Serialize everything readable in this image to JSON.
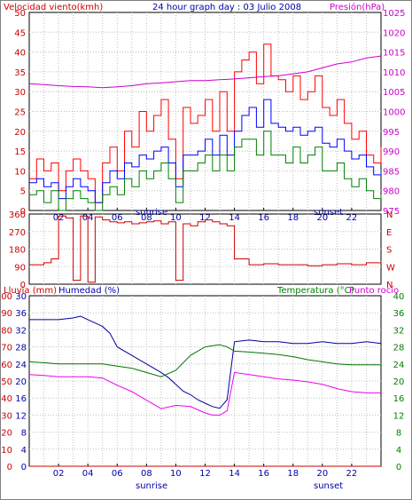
{
  "header": {
    "left_label": "Velocidad viento(kmh)",
    "title": "24 hour graph day : 03 Julio 2008",
    "right_label": "Presión(hPa)"
  },
  "colors": {
    "frame": "#000000",
    "grid": "#c0c0c0",
    "wind_gust": "#ff0000",
    "wind_avg": "#0000ff",
    "wind_low": "#008000",
    "pressure": "#cc00cc",
    "direction": "#cc0000",
    "humidity": "#000099",
    "temperature": "#007700",
    "dewpoint": "#ee00ee",
    "rain": "#cc0000",
    "left_text": "#cc0000",
    "right_text": "#cc00cc",
    "blue_text": "#0000aa",
    "green_text": "#008000"
  },
  "panel3_labels": {
    "rain": "Lluvia (mm)",
    "humidity": "Humedad (%)",
    "temperature": "Temperatura (°C)",
    "dewpoint": "Punto rocío"
  },
  "chart_data": [
    {
      "type": "line",
      "x_ticks": [
        "02",
        "04",
        "06",
        "08",
        "10",
        "12",
        "14",
        "16",
        "18",
        "20",
        "22"
      ],
      "markers": [
        "sunrise",
        "sunset"
      ],
      "y_ticks": [
        "0",
        "5",
        "10",
        "15",
        "20",
        "25",
        "30",
        "35",
        "40",
        "45",
        "50"
      ],
      "y2_ticks": [
        "975",
        "980",
        "985",
        "990",
        "995",
        "1000",
        "1005",
        "1010",
        "1015",
        "1020",
        "1025"
      ],
      "ylim": [
        0,
        50
      ],
      "y2lim": [
        975,
        1025
      ],
      "xlim": [
        0,
        24
      ],
      "series": [
        {
          "name": "Velocidad viento(kmh)",
          "x": [
            0,
            0.5,
            1,
            1.5,
            2,
            2.5,
            3,
            3.5,
            4,
            4.5,
            5,
            5.5,
            6,
            6.5,
            7,
            7.5,
            8,
            8.5,
            9,
            9.5,
            10,
            10.5,
            11,
            11.5,
            12,
            12.5,
            13,
            13.5,
            14,
            14.5,
            15,
            15.5,
            16,
            16.5,
            17,
            17.5,
            18,
            18.5,
            19,
            19.5,
            20,
            20.5,
            21,
            21.5,
            22,
            22.5,
            23,
            23.5,
            24
          ],
          "values": [
            8,
            13,
            10,
            12,
            5,
            10,
            13,
            10,
            8,
            2,
            12,
            16,
            10,
            20,
            16,
            25,
            20,
            24,
            28,
            18,
            8,
            26,
            22,
            24,
            28,
            20,
            30,
            20,
            35,
            38,
            40,
            32,
            42,
            34,
            33,
            30,
            34,
            28,
            30,
            34,
            26,
            24,
            28,
            22,
            18,
            20,
            14,
            12,
            16
          ]
        },
        {
          "name": "",
          "x": [
            0,
            0.5,
            1,
            1.5,
            2,
            2.5,
            3,
            3.5,
            4,
            4.5,
            5,
            5.5,
            6,
            6.5,
            7,
            7.5,
            8,
            8.5,
            9,
            9.5,
            10,
            10.5,
            11,
            11.5,
            12,
            12.5,
            13,
            13.5,
            14,
            14.5,
            15,
            15.5,
            16,
            16.5,
            17,
            17.5,
            18,
            18.5,
            19,
            19.5,
            20,
            20.5,
            21,
            21.5,
            22,
            22.5,
            23,
            23.5,
            24
          ],
          "values": [
            7,
            8,
            6,
            7,
            3,
            6,
            8,
            6,
            5,
            2,
            7,
            10,
            8,
            12,
            11,
            14,
            13,
            15,
            16,
            12,
            6,
            14,
            14,
            15,
            18,
            14,
            19,
            14,
            20,
            24,
            26,
            21,
            28,
            22,
            21,
            20,
            21,
            19,
            20,
            21,
            17,
            16,
            18,
            15,
            13,
            14,
            11,
            9,
            10
          ]
        },
        {
          "name": "",
          "x": [
            0,
            0.5,
            1,
            1.5,
            2,
            2.5,
            3,
            3.5,
            4,
            4.5,
            5,
            5.5,
            6,
            6.5,
            7,
            7.5,
            8,
            8.5,
            9,
            9.5,
            10,
            10.5,
            11,
            11.5,
            12,
            12.5,
            13,
            13.5,
            14,
            14.5,
            15,
            15.5,
            16,
            16.5,
            17,
            17.5,
            18,
            18.5,
            19,
            19.5,
            20,
            20.5,
            21,
            21.5,
            22,
            22.5,
            23,
            23.5,
            24
          ],
          "values": [
            4,
            5,
            2,
            5,
            0,
            3,
            5,
            3,
            2,
            0,
            4,
            6,
            4,
            8,
            6,
            10,
            8,
            10,
            12,
            8,
            2,
            10,
            10,
            12,
            14,
            10,
            14,
            10,
            16,
            18,
            18,
            14,
            20,
            14,
            14,
            12,
            16,
            12,
            14,
            16,
            10,
            10,
            12,
            8,
            6,
            8,
            5,
            3,
            4
          ]
        },
        {
          "name": "Presión(hPa)",
          "axis": "y2",
          "x": [
            0,
            1,
            2,
            3,
            4,
            5,
            6,
            7,
            8,
            9,
            10,
            11,
            12,
            13,
            14,
            15,
            16,
            17,
            18,
            19,
            20,
            21,
            22,
            23,
            24
          ],
          "values": [
            1007,
            1006.8,
            1006.5,
            1006.3,
            1006.2,
            1006,
            1006.2,
            1006.5,
            1007,
            1007.2,
            1007.5,
            1007.8,
            1007.8,
            1008,
            1008.2,
            1008.5,
            1008.8,
            1009,
            1009.5,
            1010,
            1011,
            1012,
            1012.5,
            1013.5,
            1014
          ]
        }
      ]
    },
    {
      "type": "line",
      "x_ticks": [
        "02",
        "04",
        "06",
        "08",
        "10",
        "12",
        "14",
        "16",
        "18",
        "20",
        "22"
      ],
      "y_ticks": [
        "0",
        "90",
        "180",
        "270",
        "360"
      ],
      "y2_ticks": [
        "N",
        "W",
        "S",
        "E",
        "N"
      ],
      "ylim": [
        0,
        360
      ],
      "xlim": [
        0,
        24
      ],
      "series": [
        {
          "name": "",
          "x": [
            0,
            1,
            1.5,
            2,
            2.5,
            3,
            3.5,
            4,
            4.5,
            5,
            5.5,
            6,
            6.5,
            7,
            7.5,
            8,
            8.5,
            9,
            9.5,
            10,
            10.5,
            11,
            11.5,
            12,
            12.5,
            13,
            13.5,
            14,
            15,
            16,
            17,
            18,
            19,
            20,
            21,
            22,
            23,
            24
          ],
          "values": [
            100,
            110,
            130,
            350,
            340,
            20,
            350,
            10,
            345,
            330,
            320,
            315,
            320,
            310,
            315,
            320,
            325,
            310,
            320,
            20,
            310,
            300,
            320,
            330,
            320,
            310,
            300,
            130,
            100,
            105,
            100,
            100,
            95,
            100,
            105,
            100,
            110,
            120
          ]
        }
      ]
    },
    {
      "type": "line",
      "x_ticks": [
        "02",
        "04",
        "06",
        "08",
        "10",
        "12",
        "14",
        "16",
        "18",
        "20",
        "22"
      ],
      "markers": [
        "sunrise",
        "sunset"
      ],
      "y_left1_ticks": [
        "0",
        "10",
        "20",
        "30",
        "40",
        "50",
        "60",
        "70",
        "80",
        "90",
        "100"
      ],
      "y_left2_ticks": [
        "0",
        "4",
        "8",
        "12",
        "16",
        "20",
        "24",
        "28",
        "32",
        "36",
        "30"
      ],
      "y_right_ticks": [
        "0",
        "4",
        "8",
        "12",
        "16",
        "20",
        "24",
        "28",
        "32",
        "36",
        "40"
      ],
      "xlim": [
        0,
        24
      ],
      "series": [
        {
          "name": "Humedad (%)",
          "axis": "left",
          "ylim": [
            0,
            100
          ],
          "x": [
            0,
            1,
            2,
            3,
            3.5,
            4,
            4.5,
            5,
            5.5,
            6,
            7,
            8,
            9,
            9.5,
            10,
            10.5,
            11,
            11.5,
            12,
            12.5,
            13,
            13.5,
            14,
            15,
            16,
            17,
            18,
            19,
            20,
            21,
            22,
            23,
            24
          ],
          "values": [
            86,
            86,
            86,
            87,
            88,
            86,
            84,
            82,
            78,
            70,
            65,
            60,
            55,
            52,
            48,
            44,
            42,
            39,
            37,
            35,
            34,
            39,
            73,
            74,
            73,
            73,
            72,
            72,
            73,
            72,
            72,
            73,
            72
          ]
        },
        {
          "name": "Temperatura (°C)",
          "axis": "right",
          "ylim": [
            0,
            40
          ],
          "x": [
            0,
            1,
            2,
            3,
            4,
            5,
            6,
            7,
            8,
            9,
            10,
            11,
            12,
            12.5,
            13,
            13.5,
            14,
            15,
            16,
            17,
            18,
            19,
            20,
            21,
            22,
            23,
            24
          ],
          "values": [
            24.5,
            24.3,
            24,
            24,
            24,
            24,
            23.5,
            23,
            22,
            21,
            22.5,
            26,
            28,
            28.3,
            28.5,
            28,
            27,
            26.8,
            26.5,
            26.2,
            25.7,
            25,
            24.5,
            24,
            23.8,
            23.8,
            23.8
          ]
        },
        {
          "name": "Punto rocío",
          "axis": "right",
          "ylim": [
            0,
            40
          ],
          "x": [
            0,
            1,
            2,
            3,
            4,
            5,
            6,
            7,
            8,
            9,
            10,
            11,
            12,
            12.5,
            13,
            13.5,
            14,
            15,
            16,
            17,
            18,
            19,
            20,
            21,
            22,
            23,
            24
          ],
          "values": [
            21.5,
            21.3,
            21,
            21,
            21,
            20.7,
            19,
            17.5,
            15.5,
            13.5,
            14.3,
            14,
            12.5,
            12,
            12,
            13,
            22,
            21.5,
            21,
            20.5,
            20.2,
            19.8,
            19.2,
            18.2,
            17.5,
            17.2,
            17.2
          ]
        },
        {
          "name": "Lluvia (mm)",
          "axis": "left",
          "ylim": [
            0,
            100
          ],
          "x": [
            0,
            24
          ],
          "values": [
            0,
            0
          ]
        }
      ]
    }
  ]
}
